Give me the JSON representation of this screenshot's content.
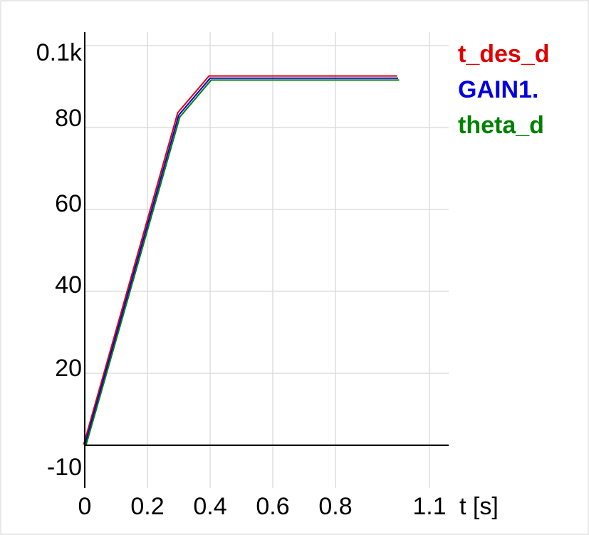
{
  "chart_data": {
    "type": "line",
    "title": "",
    "xlabel": "t [s]",
    "ylabel": "",
    "xlim": [
      0,
      1.1
    ],
    "ylim": [
      -10,
      100
    ],
    "grid": true,
    "legend_position": "right",
    "x_ticks": [
      {
        "value": 0,
        "label": "0"
      },
      {
        "value": 0.2,
        "label": "0.2"
      },
      {
        "value": 0.4,
        "label": "0.4"
      },
      {
        "value": 0.6,
        "label": "0.6"
      },
      {
        "value": 0.8,
        "label": "0.8"
      },
      {
        "value": 1.1,
        "label": "1.1"
      }
    ],
    "y_ticks": [
      {
        "value": 100,
        "label": "0.1k"
      },
      {
        "value": 80,
        "label": "80"
      },
      {
        "value": 60,
        "label": "60"
      },
      {
        "value": 40,
        "label": "40"
      },
      {
        "value": 20,
        "label": "20"
      },
      {
        "value": -10,
        "label": "-10"
      }
    ],
    "baseline_y": 0,
    "x": [
      0,
      0.3,
      0.4,
      1.0
    ],
    "series": [
      {
        "name": "t_des_d",
        "color": "#e00000",
        "values": [
          0,
          81,
          90,
          90
        ]
      },
      {
        "name": "GAIN1.",
        "color": "#0000e0",
        "values": [
          0,
          80.6,
          89.6,
          89.6
        ]
      },
      {
        "name": "theta_d",
        "color": "#008000",
        "values": [
          0,
          80.3,
          89.3,
          89.3
        ]
      }
    ]
  }
}
